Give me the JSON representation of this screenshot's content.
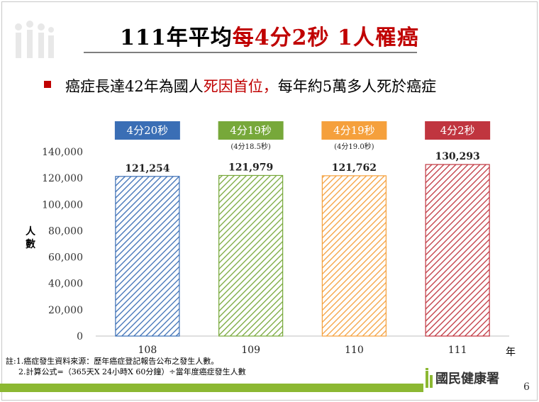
{
  "header": {
    "title_black": "111年平均",
    "title_red": "每4分2秒 1人罹癌"
  },
  "subtitle": {
    "black1": "癌症長達42年為國人",
    "red": "死因首位，",
    "black2": "每年約5萬多人死於癌症"
  },
  "chart_data": {
    "type": "bar",
    "categories": [
      "108",
      "109",
      "110",
      "111"
    ],
    "values": [
      121254,
      121979,
      121762,
      130293
    ],
    "value_labels": [
      "121,254",
      "121,979",
      "121,762",
      "130,293"
    ],
    "ylim": [
      0,
      140000
    ],
    "yticks": [
      0,
      20000,
      40000,
      60000,
      80000,
      100000,
      120000,
      140000
    ],
    "ytick_labels": [
      "0",
      "20,000",
      "40,000",
      "60,000",
      "80,000",
      "100,000",
      "120,000",
      "140,000"
    ],
    "ylabel": "人數",
    "xlabel": "年",
    "colors": [
      "#3a6eb5",
      "#77a83a",
      "#f5a03c",
      "#c0353f"
    ],
    "interval_labels": [
      "4分20秒",
      "4分19秒",
      "4分19秒",
      "4分2秒"
    ],
    "interval_notes": [
      "",
      "(4分18.5秒)",
      "(4分19.0秒)",
      ""
    ]
  },
  "footer": {
    "note1": "註:1.癌症發生資料來源：歷年癌症登記報告公布之發生人數。",
    "note2": "2.計算公式=（365天X 24小時X 60分鐘）÷當年度癌症發生人數",
    "agency": "國民健康署",
    "page": "6"
  }
}
